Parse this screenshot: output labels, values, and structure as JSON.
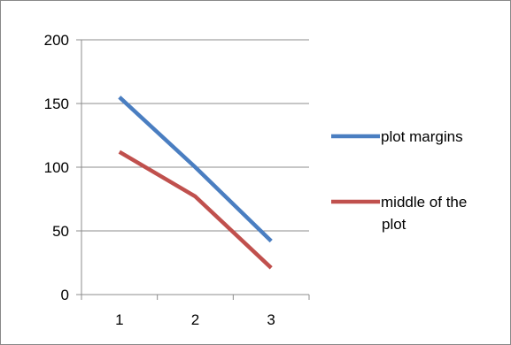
{
  "chart_data": {
    "type": "line",
    "categories": [
      "1",
      "2",
      "3"
    ],
    "x": [
      1,
      2,
      3
    ],
    "ylim": [
      0,
      200
    ],
    "yticks": [
      0,
      50,
      100,
      150,
      200
    ],
    "grid": "horizontal",
    "legend_position": "right",
    "series": [
      {
        "name": "plot margins",
        "values": [
          155,
          100,
          42
        ],
        "color": "#4a7ec1"
      },
      {
        "name": "middle of the plot",
        "values": [
          112,
          77,
          21
        ],
        "color": "#c0504d"
      }
    ]
  },
  "legend": {
    "items": [
      {
        "lines": [
          "plot margins"
        ]
      },
      {
        "lines": [
          " middle of the",
          "plot"
        ]
      }
    ]
  }
}
